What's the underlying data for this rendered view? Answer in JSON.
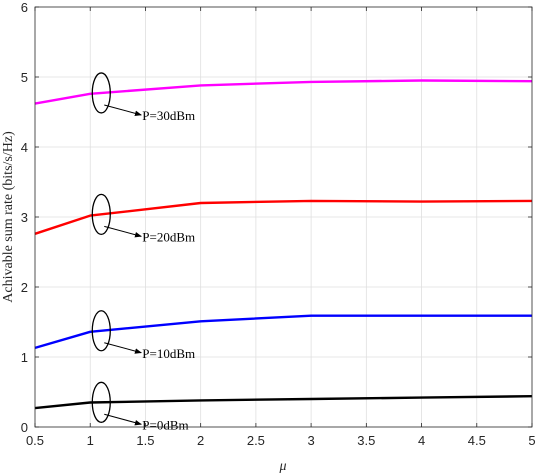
{
  "chart_data": {
    "type": "line",
    "xlabel": "μ",
    "ylabel": "Achivable sum rate (bits/s/Hz)",
    "xlim": [
      0.5,
      5
    ],
    "ylim": [
      0,
      6
    ],
    "xticks": [
      0.5,
      1,
      1.5,
      2,
      2.5,
      3,
      3.5,
      4,
      4.5,
      5
    ],
    "xtick_labels": [
      "0.5",
      "1",
      "1.5",
      "2",
      "2.5",
      "3",
      "3.5",
      "4",
      "4.5",
      "5"
    ],
    "yticks": [
      0,
      1,
      2,
      3,
      4,
      5,
      6
    ],
    "ytick_labels": [
      "0",
      "1",
      "2",
      "3",
      "4",
      "5",
      "6"
    ],
    "grid": true,
    "x": [
      0.5,
      1,
      2,
      3,
      4,
      5
    ],
    "series": [
      {
        "label": "P=30dBm",
        "color": "#ff00ff",
        "values": [
          4.62,
          4.76,
          4.88,
          4.93,
          4.95,
          4.94
        ],
        "annot_x": 1.1
      },
      {
        "label": "P=20dBm",
        "color": "#ff0000",
        "values": [
          2.76,
          3.02,
          3.2,
          3.23,
          3.22,
          3.23
        ],
        "annot_x": 1.1
      },
      {
        "label": "P=10dBm",
        "color": "#0000ff",
        "values": [
          1.13,
          1.36,
          1.51,
          1.59,
          1.59,
          1.59
        ],
        "annot_x": 1.1
      },
      {
        "label": "P=0dBm",
        "color": "#000000",
        "values": [
          0.27,
          0.35,
          0.38,
          0.4,
          0.42,
          0.44
        ],
        "annot_x": 1.1
      }
    ]
  }
}
